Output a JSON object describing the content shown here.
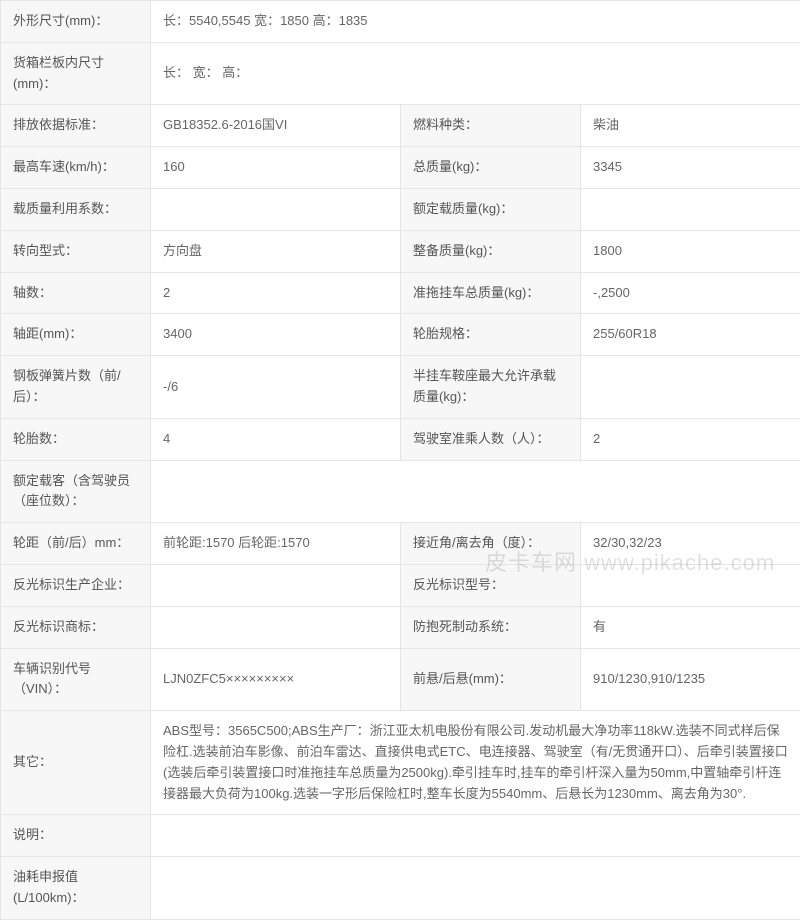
{
  "rows": [
    {
      "type": "wide",
      "label": "外形尺寸(mm)：",
      "value": "长：5540,5545 宽：1850 高：1835"
    },
    {
      "type": "wide",
      "label": "货箱栏板内尺寸(mm)：",
      "value": "长： 宽： 高："
    },
    {
      "type": "quad",
      "label1": "排放依据标准：",
      "value1": "GB18352.6-2016国VI",
      "label2": "燃料种类：",
      "value2": "柴油"
    },
    {
      "type": "quad",
      "label1": "最高车速(km/h)：",
      "value1": "160",
      "label2": "总质量(kg)：",
      "value2": "3345"
    },
    {
      "type": "quad",
      "label1": "载质量利用系数：",
      "value1": "",
      "label2": "额定载质量(kg)：",
      "value2": ""
    },
    {
      "type": "quad",
      "label1": "转向型式：",
      "value1": "方向盘",
      "label2": "整备质量(kg)：",
      "value2": "1800"
    },
    {
      "type": "quad",
      "label1": "轴数：",
      "value1": "2",
      "label2": "准拖挂车总质量(kg)：",
      "value2": "-,2500"
    },
    {
      "type": "quad",
      "label1": "轴距(mm)：",
      "value1": "3400",
      "label2": "轮胎规格：",
      "value2": "255/60R18"
    },
    {
      "type": "quad",
      "label1": "钢板弹簧片数（前/后）：",
      "value1": "-/6",
      "label2": "半挂车鞍座最大允许承载质量(kg)：",
      "value2": ""
    },
    {
      "type": "quad",
      "label1": "轮胎数：",
      "value1": "4",
      "label2": "驾驶室准乘人数（人）：",
      "value2": "2"
    },
    {
      "type": "wide",
      "label": "额定载客（含驾驶员（座位数）：",
      "value": ""
    },
    {
      "type": "quad",
      "label1": "轮距（前/后）mm：",
      "value1": "前轮距:1570 后轮距:1570",
      "label2": "接近角/离去角（度）：",
      "value2": "32/30,32/23"
    },
    {
      "type": "quad",
      "label1": "反光标识生产企业：",
      "value1": "",
      "label2": "反光标识型号：",
      "value2": ""
    },
    {
      "type": "quad",
      "label1": "反光标识商标：",
      "value1": "",
      "label2": "防抱死制动系统：",
      "value2": "有"
    },
    {
      "type": "quad",
      "label1": "车辆识别代号（VIN）：",
      "value1": "LJN0ZFC5×××××××××",
      "label2": "前悬/后悬(mm)：",
      "value2": "910/1230,910/1235"
    },
    {
      "type": "wide",
      "label": "其它：",
      "value": "ABS型号：3565C500;ABS生产厂：浙江亚太机电股份有限公司.发动机最大净功率118kW.选装不同式样后保险杠.选装前泊车影像、前泊车雷达、直接供电式ETC、电连接器、驾驶室（有/无贯通开口）、后牵引装置接口(选装后牵引装置接口时准拖挂车总质量为2500kg).牵引挂车时,挂车的牵引杆深入量为50mm,中置轴牵引杆连接器最大负荷为100kg.选装一字形后保险杠时,整车长度为5540mm、后悬长为1230mm、离去角为30°."
    },
    {
      "type": "wide",
      "label": "说明：",
      "value": ""
    },
    {
      "type": "wide",
      "label": "油耗申报值(L/100km)：",
      "value": ""
    }
  ],
  "watermark": "皮卡车网  www.pikache.com"
}
